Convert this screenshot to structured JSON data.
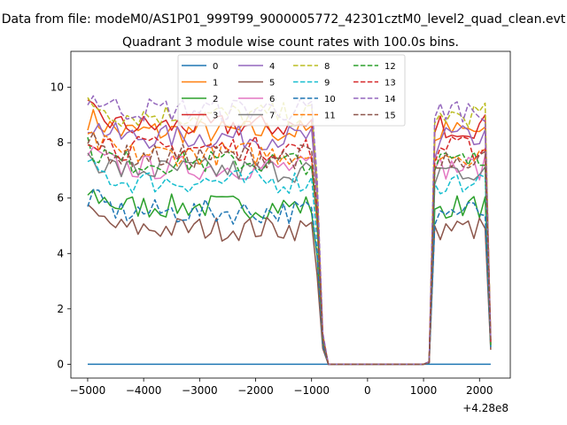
{
  "figure": {
    "suptitle": "Data from file: modeM0/AS1P01_999T99_9000005772_42301cztM0_level2_quad_clean.evt"
  },
  "chart_data": {
    "type": "line",
    "title": "Quadrant 3 module wise count rates with 100.0s bins.",
    "xlabel": "",
    "ylabel": "",
    "x_offset_label": "+4.28e8",
    "xlim": [
      -5300,
      2550
    ],
    "ylim": [
      -0.5,
      11.3
    ],
    "x_ticks": [
      -5000,
      -4000,
      -3000,
      -2000,
      -1000,
      0,
      1000,
      2000
    ],
    "x_tick_labels": [
      "−5000",
      "−4000",
      "−3000",
      "−2000",
      "−1000",
      "0",
      "1000",
      "2000"
    ],
    "y_ticks": [
      0,
      2,
      4,
      6,
      8,
      10
    ],
    "y_tick_labels": [
      "0",
      "2",
      "4",
      "6",
      "8",
      "10"
    ],
    "grid": false,
    "legend": {
      "placement": "top-center",
      "columns": 4
    },
    "x": [
      -5000,
      -4900,
      -4800,
      -4700,
      -4600,
      -4500,
      -4400,
      -4300,
      -4200,
      -4100,
      -4000,
      -3900,
      -3800,
      -3700,
      -3600,
      -3500,
      -3400,
      -3300,
      -3200,
      -3100,
      -3000,
      -2900,
      -2800,
      -2700,
      -2600,
      -2500,
      -2400,
      -2300,
      -2200,
      -2100,
      -2000,
      -1900,
      -1800,
      -1700,
      -1600,
      -1500,
      -1400,
      -1300,
      -1200,
      -1100,
      -1000,
      -900,
      -800,
      -700,
      -600,
      -500,
      -400,
      -300,
      -200,
      -100,
      0,
      100,
      200,
      300,
      400,
      500,
      600,
      700,
      800,
      900,
      1000,
      1100,
      1200,
      1300,
      1400,
      1500,
      1600,
      1700,
      1800,
      1900,
      2000,
      2100,
      2200
    ],
    "gap_start": -800,
    "gap_end": 1100,
    "series": [
      {
        "name": "0",
        "color": "#1f77b4",
        "dash": "solid",
        "level": 0.0
      },
      {
        "name": "1",
        "color": "#ff7f0e",
        "dash": "solid",
        "level": 8.4
      },
      {
        "name": "2",
        "color": "#2ca02c",
        "dash": "solid",
        "level": 5.7
      },
      {
        "name": "3",
        "color": "#d62728",
        "dash": "solid",
        "level": 8.6
      },
      {
        "name": "4",
        "color": "#9467bd",
        "dash": "solid",
        "level": 8.2
      },
      {
        "name": "5",
        "color": "#8c564b",
        "dash": "solid",
        "level": 4.9
      },
      {
        "name": "6",
        "color": "#e377c2",
        "dash": "solid",
        "level": 7.1
      },
      {
        "name": "7",
        "color": "#7f7f7f",
        "dash": "solid",
        "level": 7.0
      },
      {
        "name": "8",
        "color": "#bcbd22",
        "dash": "dashed",
        "level": 9.0
      },
      {
        "name": "9",
        "color": "#17becf",
        "dash": "dashed",
        "level": 6.6
      },
      {
        "name": "10",
        "color": "#1f77b4",
        "dash": "dashed",
        "level": 5.5
      },
      {
        "name": "11",
        "color": "#ff7f0e",
        "dash": "dashed",
        "level": 7.6
      },
      {
        "name": "12",
        "color": "#2ca02c",
        "dash": "dashed",
        "level": 7.3
      },
      {
        "name": "13",
        "color": "#d62728",
        "dash": "dashed",
        "level": 7.8
      },
      {
        "name": "14",
        "color": "#9467bd",
        "dash": "dashed",
        "level": 9.2
      },
      {
        "name": "15",
        "color": "#8c564b",
        "dash": "dashed",
        "level": 7.5
      }
    ]
  }
}
